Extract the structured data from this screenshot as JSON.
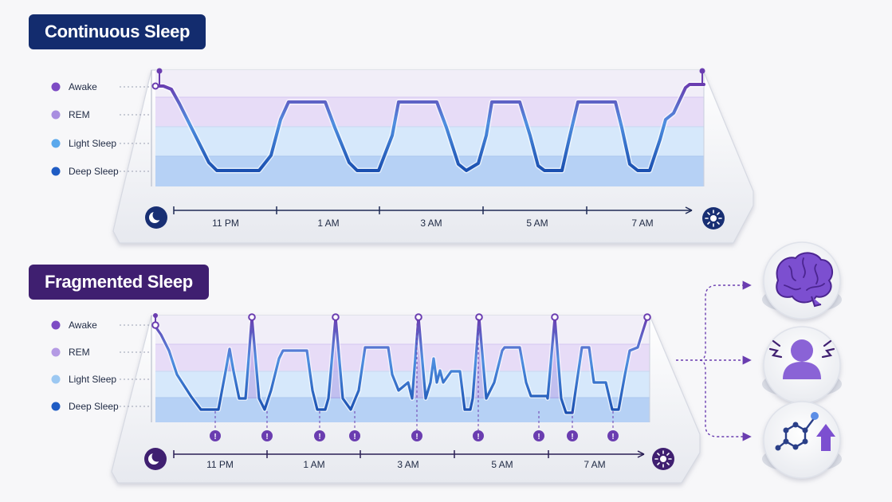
{
  "continuous": {
    "title": "Continuous Sleep",
    "stages": [
      "Awake",
      "REM",
      "Light Sleep",
      "Deep Sleep"
    ],
    "stage_colors": [
      "#7d4bc4",
      "#a98ee0",
      "#5aa8ec",
      "#1f5cc4"
    ],
    "times": [
      "11 PM",
      "1 AM",
      "3 AM",
      "5 AM",
      "7 AM"
    ],
    "start_icon": "moon-icon",
    "end_icon": "sun-icon"
  },
  "fragmented": {
    "title": "Fragmented Sleep",
    "stages": [
      "Awake",
      "REM",
      "Light Sleep",
      "Deep Sleep"
    ],
    "stage_colors": [
      "#7d4bc4",
      "#b49ae4",
      "#9cc8f2",
      "#1f5cc4"
    ],
    "times": [
      "11 PM",
      "1 AM",
      "3 AM",
      "5 AM",
      "7 AM"
    ],
    "awakening_marker": "!",
    "start_icon": "moon-icon",
    "end_icon": "sun-icon"
  },
  "effects": {
    "icons": [
      "brain-icon",
      "stressed-person-icon",
      "molecule-up-icon"
    ]
  },
  "colors": {
    "navy": "#132c6e",
    "purple": "#3f1f70",
    "accent_purple": "#6a3db0",
    "deep_blue": "#1f5cc4"
  }
}
